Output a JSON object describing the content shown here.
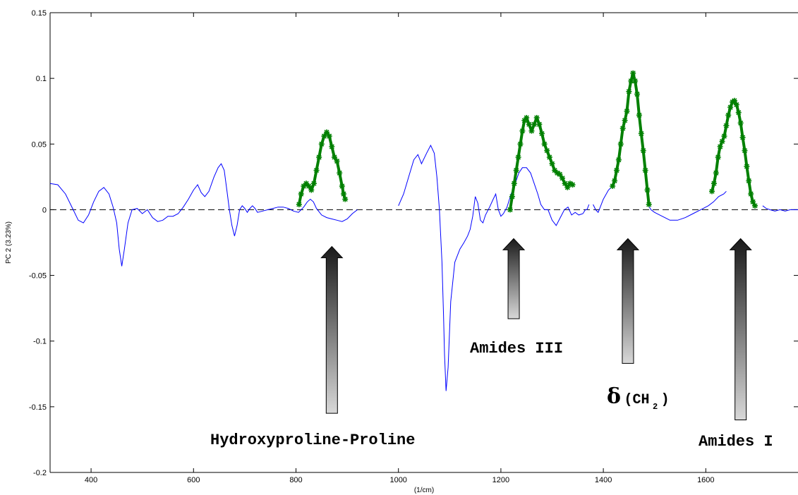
{
  "chart_data": {
    "type": "line",
    "xlabel": "(1/cm)",
    "ylabel": "PC 2 (3.23%)",
    "xlim": [
      320,
      1780
    ],
    "ylim": [
      -0.2,
      0.15
    ],
    "x_ticks": [
      400,
      600,
      800,
      1000,
      1200,
      1400,
      1600
    ],
    "y_ticks": [
      -0.2,
      -0.15,
      -0.1,
      -0.05,
      0,
      0.05,
      0.1,
      0.15
    ],
    "x_tick_labels": [
      "400",
      "600",
      "800",
      "1000",
      "1200",
      "1400",
      "1600"
    ],
    "y_tick_labels": [
      "-0.2",
      "-0.15",
      "-0.1",
      "-0.05",
      "0",
      "0.05",
      "0.1",
      "0.15"
    ],
    "grid": false,
    "zero_line": true,
    "series": [
      {
        "color": "#0000ff",
        "points": [
          [
            320,
            0.02
          ],
          [
            335,
            0.019
          ],
          [
            350,
            0.012
          ],
          [
            365,
            0.0
          ],
          [
            375,
            -0.008
          ],
          [
            385,
            -0.01
          ],
          [
            395,
            -0.004
          ],
          [
            405,
            0.006
          ],
          [
            415,
            0.014
          ],
          [
            425,
            0.017
          ],
          [
            435,
            0.012
          ],
          [
            443,
            0.002
          ],
          [
            450,
            -0.01
          ],
          [
            455,
            -0.03
          ],
          [
            460,
            -0.043
          ],
          [
            465,
            -0.03
          ],
          [
            472,
            -0.01
          ],
          [
            480,
            0.0
          ],
          [
            490,
            0.001
          ],
          [
            500,
            -0.003
          ],
          [
            510,
            0.0
          ],
          [
            520,
            -0.006
          ],
          [
            530,
            -0.009
          ],
          [
            540,
            -0.008
          ],
          [
            550,
            -0.005
          ],
          [
            560,
            -0.005
          ],
          [
            570,
            -0.003
          ],
          [
            580,
            0.002
          ],
          [
            590,
            0.008
          ],
          [
            600,
            0.015
          ],
          [
            608,
            0.019
          ],
          [
            615,
            0.013
          ],
          [
            622,
            0.01
          ],
          [
            630,
            0.014
          ],
          [
            640,
            0.025
          ],
          [
            648,
            0.032
          ],
          [
            654,
            0.035
          ],
          [
            660,
            0.03
          ],
          [
            665,
            0.015
          ],
          [
            670,
            0.0
          ],
          [
            675,
            -0.012
          ],
          [
            680,
            -0.02
          ],
          [
            685,
            -0.012
          ],
          [
            690,
            0.0
          ],
          [
            695,
            0.003
          ],
          [
            700,
            0.001
          ],
          [
            705,
            -0.002
          ],
          [
            710,
            0.001
          ],
          [
            715,
            0.003
          ],
          [
            720,
            0.001
          ],
          [
            725,
            -0.002
          ],
          [
            735,
            -0.001
          ],
          [
            745,
            0.0
          ],
          [
            755,
            0.001
          ],
          [
            765,
            0.002
          ],
          [
            775,
            0.002
          ],
          [
            785,
            0.001
          ],
          [
            795,
            -0.001
          ],
          [
            805,
            -0.002
          ],
          [
            815,
            0.002
          ],
          [
            822,
            0.006
          ],
          [
            828,
            0.008
          ],
          [
            834,
            0.006
          ],
          [
            840,
            0.001
          ],
          [
            850,
            -0.004
          ],
          [
            860,
            -0.006
          ],
          [
            870,
            -0.007
          ],
          [
            880,
            -0.008
          ],
          [
            890,
            -0.009
          ],
          [
            900,
            -0.007
          ],
          [
            910,
            -0.003
          ],
          [
            920,
            0.0
          ]
        ]
      },
      {
        "color": "#0000ff",
        "points": [
          [
            1000,
            0.003
          ],
          [
            1010,
            0.012
          ],
          [
            1020,
            0.025
          ],
          [
            1030,
            0.038
          ],
          [
            1038,
            0.042
          ],
          [
            1045,
            0.035
          ],
          [
            1055,
            0.043
          ],
          [
            1063,
            0.049
          ],
          [
            1070,
            0.043
          ],
          [
            1075,
            0.025
          ],
          [
            1080,
            0.0
          ],
          [
            1085,
            -0.04
          ],
          [
            1088,
            -0.08
          ],
          [
            1090,
            -0.11
          ],
          [
            1093,
            -0.138
          ],
          [
            1097,
            -0.12
          ],
          [
            1102,
            -0.07
          ],
          [
            1110,
            -0.04
          ],
          [
            1120,
            -0.03
          ],
          [
            1128,
            -0.025
          ],
          [
            1135,
            -0.02
          ],
          [
            1140,
            -0.015
          ],
          [
            1145,
            -0.005
          ],
          [
            1150,
            0.01
          ],
          [
            1155,
            0.005
          ],
          [
            1160,
            -0.008
          ],
          [
            1165,
            -0.01
          ],
          [
            1170,
            -0.004
          ],
          [
            1178,
            0.002
          ],
          [
            1185,
            0.008
          ],
          [
            1190,
            0.012
          ],
          [
            1195,
            0.0
          ],
          [
            1200,
            -0.005
          ],
          [
            1205,
            -0.003
          ],
          [
            1212,
            0.002
          ],
          [
            1220,
            0.012
          ],
          [
            1228,
            0.02
          ],
          [
            1235,
            0.028
          ],
          [
            1242,
            0.032
          ],
          [
            1250,
            0.032
          ],
          [
            1258,
            0.028
          ],
          [
            1265,
            0.02
          ],
          [
            1272,
            0.012
          ],
          [
            1278,
            0.004
          ],
          [
            1285,
            0.0
          ],
          [
            1292,
            0.0
          ],
          [
            1300,
            -0.008
          ],
          [
            1308,
            -0.012
          ],
          [
            1316,
            -0.006
          ],
          [
            1324,
            0.0
          ],
          [
            1331,
            0.002
          ],
          [
            1338,
            -0.004
          ],
          [
            1345,
            -0.002
          ],
          [
            1352,
            -0.004
          ],
          [
            1360,
            -0.003
          ],
          [
            1365,
            0.0
          ]
        ]
      },
      {
        "color": "#0000ff",
        "points": [
          [
            1365,
            0.0
          ],
          [
            1368,
            0.0
          ],
          [
            1372,
            0.004
          ]
        ]
      },
      {
        "color": "#0000ff",
        "points": [
          [
            1380,
            0.004
          ],
          [
            1385,
            0.0
          ],
          [
            1390,
            -0.002
          ],
          [
            1400,
            0.008
          ],
          [
            1410,
            0.015
          ],
          [
            1418,
            0.018
          ],
          [
            1422,
            0.018
          ]
        ]
      },
      {
        "color": "#0000ff",
        "points": [
          [
            1487,
            0.004
          ],
          [
            1493,
            0.0
          ],
          [
            1500,
            -0.002
          ],
          [
            1510,
            -0.004
          ],
          [
            1520,
            -0.006
          ],
          [
            1530,
            -0.008
          ],
          [
            1545,
            -0.008
          ],
          [
            1560,
            -0.006
          ],
          [
            1575,
            -0.003
          ],
          [
            1590,
            0.0
          ],
          [
            1605,
            0.003
          ],
          [
            1615,
            0.006
          ],
          [
            1625,
            0.01
          ],
          [
            1635,
            0.012
          ],
          [
            1640,
            0.014
          ]
        ]
      },
      {
        "color": "#0000ff",
        "points": [
          [
            1711,
            0.003
          ],
          [
            1718,
            0.001
          ],
          [
            1725,
            0.0
          ],
          [
            1735,
            -0.001
          ],
          [
            1745,
            0.0
          ],
          [
            1755,
            -0.001
          ],
          [
            1765,
            0.0
          ],
          [
            1780,
            0.0
          ]
        ]
      },
      {
        "color": "#008000",
        "marker": "star",
        "points": [
          [
            806,
            0.004
          ],
          [
            810,
            0.012
          ],
          [
            815,
            0.018
          ],
          [
            820,
            0.02
          ],
          [
            825,
            0.018
          ],
          [
            830,
            0.015
          ],
          [
            835,
            0.02
          ],
          [
            840,
            0.03
          ],
          [
            845,
            0.04
          ],
          [
            850,
            0.05
          ],
          [
            855,
            0.056
          ],
          [
            860,
            0.059
          ],
          [
            865,
            0.056
          ],
          [
            870,
            0.048
          ],
          [
            875,
            0.04
          ],
          [
            880,
            0.037
          ],
          [
            885,
            0.028
          ],
          [
            890,
            0.018
          ],
          [
            893,
            0.012
          ],
          [
            896,
            0.008
          ]
        ]
      },
      {
        "color": "#008000",
        "marker": "star",
        "points": [
          [
            1218,
            0.0
          ],
          [
            1222,
            0.01
          ],
          [
            1226,
            0.02
          ],
          [
            1230,
            0.03
          ],
          [
            1234,
            0.04
          ],
          [
            1238,
            0.05
          ],
          [
            1242,
            0.06
          ],
          [
            1246,
            0.068
          ],
          [
            1250,
            0.07
          ],
          [
            1255,
            0.065
          ],
          [
            1260,
            0.06
          ],
          [
            1265,
            0.065
          ],
          [
            1270,
            0.07
          ],
          [
            1275,
            0.065
          ],
          [
            1280,
            0.058
          ],
          [
            1285,
            0.05
          ],
          [
            1290,
            0.045
          ],
          [
            1295,
            0.04
          ],
          [
            1300,
            0.035
          ],
          [
            1305,
            0.03
          ],
          [
            1310,
            0.028
          ],
          [
            1315,
            0.027
          ],
          [
            1320,
            0.024
          ],
          [
            1325,
            0.02
          ],
          [
            1330,
            0.017
          ],
          [
            1335,
            0.02
          ],
          [
            1340,
            0.019
          ]
        ]
      },
      {
        "color": "#008000",
        "marker": "star",
        "points": [
          [
            1418,
            0.018
          ],
          [
            1422,
            0.022
          ],
          [
            1426,
            0.03
          ],
          [
            1430,
            0.038
          ],
          [
            1434,
            0.05
          ],
          [
            1438,
            0.062
          ],
          [
            1442,
            0.068
          ],
          [
            1446,
            0.075
          ],
          [
            1450,
            0.09
          ],
          [
            1454,
            0.098
          ],
          [
            1458,
            0.104
          ],
          [
            1462,
            0.098
          ],
          [
            1466,
            0.088
          ],
          [
            1470,
            0.072
          ],
          [
            1474,
            0.058
          ],
          [
            1478,
            0.045
          ],
          [
            1482,
            0.03
          ],
          [
            1486,
            0.015
          ],
          [
            1489,
            0.004
          ]
        ]
      },
      {
        "color": "#008000",
        "marker": "star",
        "points": [
          [
            1612,
            0.014
          ],
          [
            1616,
            0.02
          ],
          [
            1620,
            0.028
          ],
          [
            1624,
            0.04
          ],
          [
            1628,
            0.048
          ],
          [
            1632,
            0.052
          ],
          [
            1636,
            0.056
          ],
          [
            1640,
            0.064
          ],
          [
            1644,
            0.072
          ],
          [
            1648,
            0.078
          ],
          [
            1652,
            0.082
          ],
          [
            1656,
            0.083
          ],
          [
            1660,
            0.08
          ],
          [
            1664,
            0.074
          ],
          [
            1668,
            0.066
          ],
          [
            1672,
            0.055
          ],
          [
            1676,
            0.045
          ],
          [
            1680,
            0.033
          ],
          [
            1684,
            0.022
          ],
          [
            1688,
            0.012
          ],
          [
            1692,
            0.006
          ],
          [
            1696,
            0.003
          ]
        ]
      }
    ],
    "annotations": [
      {
        "text": "Hydroxyproline-Proline",
        "x_data": 870,
        "tail_y": -0.155,
        "head_y": -0.028,
        "arrow_shade": "dark-to-light"
      },
      {
        "text": "Amides III",
        "x_data": 1225,
        "tail_y": -0.083,
        "head_y": -0.022,
        "arrow_shade": "dark-to-light"
      },
      {
        "text": "δ(CH2)",
        "x_data": 1448,
        "tail_y": -0.117,
        "head_y": -0.022,
        "arrow_shade": "dark-to-light"
      },
      {
        "text": "Amides I",
        "x_data": 1668,
        "tail_y": -0.16,
        "head_y": -0.022,
        "arrow_shade": "dark-to-light"
      }
    ]
  },
  "labels": {
    "hydroxy": "Hydroxyproline-Proline",
    "amides3": "Amides III",
    "delta": "δ",
    "ch_open": "(CH",
    "ch_sub": "2",
    "ch_close": ")",
    "amides1": "Amides I"
  }
}
